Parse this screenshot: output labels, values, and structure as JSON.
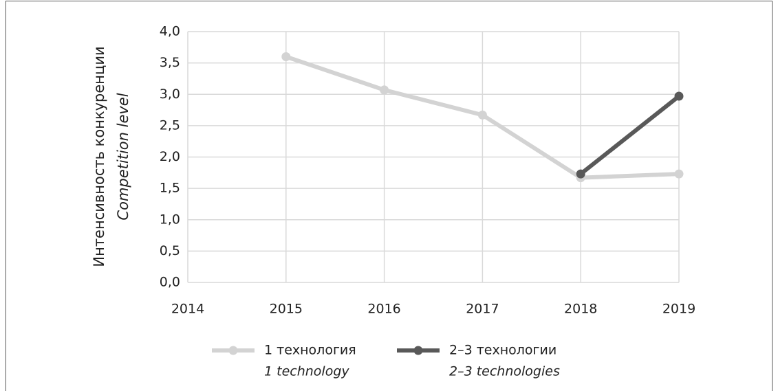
{
  "chart_data": {
    "type": "line",
    "y_label": "Интенсивность конкуренции",
    "y_label_en": "Competition level",
    "categories": [
      "2014",
      "2015",
      "2016",
      "2017",
      "2018",
      "2019"
    ],
    "series": [
      {
        "name": "1 технология",
        "name_en": "1 technology",
        "color": "#d3d3d3",
        "values": [
          null,
          3.6,
          3.07,
          2.67,
          1.67,
          1.73
        ]
      },
      {
        "name": "2–3 технологии",
        "name_en": "2–3 technologies",
        "color": "#595959",
        "values": [
          null,
          null,
          null,
          null,
          1.73,
          2.97
        ]
      }
    ],
    "ylim": [
      0,
      4
    ],
    "yticks": [
      {
        "value": 0,
        "label": "0,0"
      },
      {
        "value": 0.5,
        "label": "0,5"
      },
      {
        "value": 1,
        "label": "1,0"
      },
      {
        "value": 1.5,
        "label": "1,5"
      },
      {
        "value": 2,
        "label": "2,0"
      },
      {
        "value": 2.5,
        "label": "2,5"
      },
      {
        "value": 3,
        "label": "3,0"
      },
      {
        "value": 3.5,
        "label": "3,5"
      },
      {
        "value": 4,
        "label": "4,0"
      }
    ],
    "grid": true,
    "legend": "bottom"
  }
}
